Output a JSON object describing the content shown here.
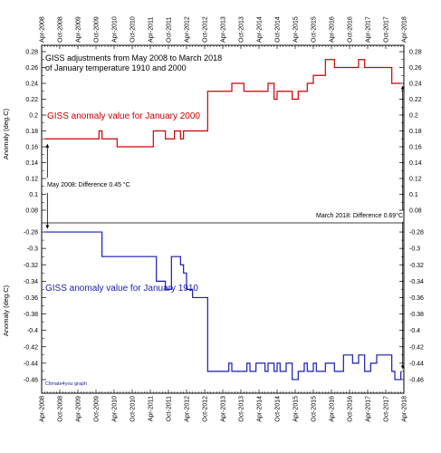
{
  "chart_data": {
    "type": "line",
    "title_lines": [
      "GISS adjustments from May 2008 to March 2018",
      "of January temperature 1910 and 2000"
    ],
    "ylabel": "Anomaly (deg.C)",
    "x_ticks": [
      "Apr-2008",
      "Oct-2008",
      "Apr-2009",
      "Oct-2009",
      "Apr-2010",
      "Oct-2010",
      "Apr-2011",
      "Oct-2011",
      "Apr-2012",
      "Oct-2012",
      "Apr-2013",
      "Oct-2013",
      "Apr-2014",
      "Oct-2014",
      "Apr-2015",
      "Oct-2015",
      "Apr-2016",
      "Oct-2016",
      "Apr-2017",
      "Oct-2017",
      "Apr-2018"
    ],
    "x_range": [
      "2008-04",
      "2018-04"
    ],
    "panels": [
      {
        "id": "upper",
        "ylim": [
          0.08,
          0.28
        ],
        "y_ticks": [
          0.08,
          0.1,
          0.12,
          0.14,
          0.16,
          0.18,
          0.2,
          0.22,
          0.24,
          0.26,
          0.28
        ],
        "y_tick_labels": [
          "0.08",
          "0.1",
          "0.12",
          "0.14",
          "0.16",
          "0.18",
          "0.2",
          "0.22",
          "0.24",
          "0.26",
          "0.28"
        ]
      },
      {
        "id": "lower",
        "ylim": [
          -0.47,
          -0.27
        ],
        "y_ticks": [
          -0.28,
          -0.3,
          -0.32,
          -0.34,
          -0.36,
          -0.38,
          -0.4,
          -0.42,
          -0.44,
          -0.46
        ],
        "y_tick_labels": [
          "-0.28",
          "-0.3",
          "-0.32",
          "-0.34",
          "-0.36",
          "-0.38",
          "-0.4",
          "-0.42",
          "-0.44",
          "-0.46"
        ]
      }
    ],
    "series": [
      {
        "name": "GISS anomaly value for January 2000",
        "color": "#cc0000",
        "panel": "upper",
        "step": true,
        "x": [
          "2008-05",
          "2009-11",
          "2009-12",
          "2010-05",
          "2011-05",
          "2011-06",
          "2011-09",
          "2011-11",
          "2011-12",
          "2012-02",
          "2012-03",
          "2012-04",
          "2012-06",
          "2012-11",
          "2013-04",
          "2013-06",
          "2013-07",
          "2013-11",
          "2013-12",
          "2014-01",
          "2014-03",
          "2014-06",
          "2014-07",
          "2014-09",
          "2014-10",
          "2014-11",
          "2015-01",
          "2015-03",
          "2015-05",
          "2015-07",
          "2015-08",
          "2015-10",
          "2015-11",
          "2016-02",
          "2016-05",
          "2016-08",
          "2016-11",
          "2017-01",
          "2017-03",
          "2017-05",
          "2017-07",
          "2017-09",
          "2017-10",
          "2017-12",
          "2018-01",
          "2018-03"
        ],
        "y": [
          0.17,
          0.18,
          0.17,
          0.16,
          0.18,
          0.18,
          0.17,
          0.17,
          0.18,
          0.17,
          0.18,
          0.18,
          0.18,
          0.23,
          0.23,
          0.23,
          0.24,
          0.23,
          0.23,
          0.23,
          0.23,
          0.23,
          0.24,
          0.22,
          0.23,
          0.23,
          0.23,
          0.22,
          0.23,
          0.23,
          0.24,
          0.25,
          0.25,
          0.27,
          0.26,
          0.26,
          0.26,
          0.27,
          0.26,
          0.26,
          0.26,
          0.26,
          0.26,
          0.24,
          0.24,
          0.24
        ]
      },
      {
        "name": "GISS anomaly value for January 1910",
        "color": "#1a1ab3",
        "panel": "lower",
        "step": true,
        "x": [
          "2008-05",
          "2009-11",
          "2009-12",
          "2010-05",
          "2011-05",
          "2011-06",
          "2011-09",
          "2011-11",
          "2011-12",
          "2012-02",
          "2012-03",
          "2012-04",
          "2012-06",
          "2012-11",
          "2013-04",
          "2013-06",
          "2013-07",
          "2013-11",
          "2013-12",
          "2014-01",
          "2014-03",
          "2014-06",
          "2014-07",
          "2014-09",
          "2014-10",
          "2014-11",
          "2015-01",
          "2015-03",
          "2015-05",
          "2015-07",
          "2015-08",
          "2015-10",
          "2015-11",
          "2016-02",
          "2016-05",
          "2016-08",
          "2016-11",
          "2017-01",
          "2017-03",
          "2017-05",
          "2017-07",
          "2017-09",
          "2017-10",
          "2017-12",
          "2018-01",
          "2018-03"
        ],
        "y": [
          -0.28,
          -0.28,
          -0.31,
          -0.31,
          -0.31,
          -0.34,
          -0.35,
          -0.31,
          -0.31,
          -0.32,
          -0.33,
          -0.35,
          -0.36,
          -0.45,
          -0.45,
          -0.44,
          -0.45,
          -0.45,
          -0.44,
          -0.45,
          -0.44,
          -0.45,
          -0.44,
          -0.45,
          -0.44,
          -0.45,
          -0.44,
          -0.46,
          -0.45,
          -0.44,
          -0.45,
          -0.44,
          -0.45,
          -0.44,
          -0.45,
          -0.43,
          -0.44,
          -0.43,
          -0.45,
          -0.44,
          -0.43,
          -0.43,
          -0.43,
          -0.45,
          -0.46,
          -0.45
        ]
      }
    ],
    "annotations": [
      {
        "text": "May 2008: Difference 0.45 °C",
        "from_y": 0.17,
        "to_y": -0.28,
        "at_x": "2008-05"
      },
      {
        "text": "March 2018: Difference 0.69°C",
        "from_y": 0.24,
        "to_y": -0.45,
        "at_x": "2018-03"
      }
    ],
    "credit": "Climate4you graph",
    "grid": false
  }
}
